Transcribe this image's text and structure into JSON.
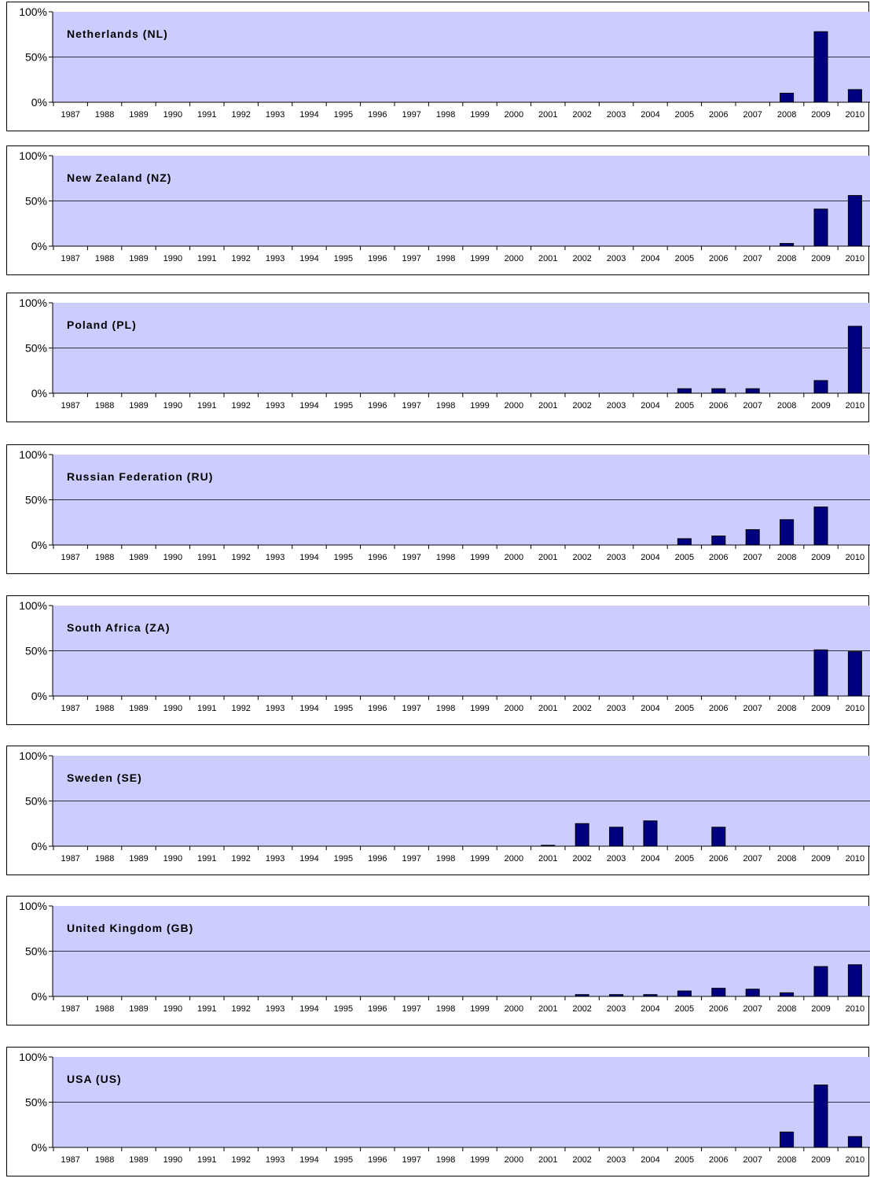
{
  "chart_data": {
    "type": "bar",
    "categories": [
      "1987",
      "1988",
      "1989",
      "1990",
      "1991",
      "1992",
      "1993",
      "1994",
      "1995",
      "1996",
      "1997",
      "1998",
      "1999",
      "2000",
      "2001",
      "2002",
      "2003",
      "2004",
      "2005",
      "2006",
      "2007",
      "2008",
      "2009",
      "2010"
    ],
    "y_ticks": [
      "0%",
      "50%",
      "100%"
    ],
    "ylim": [
      0,
      100
    ],
    "grid": true,
    "panels": [
      {
        "title": "Netherlands (NL)",
        "values": [
          0,
          0,
          0,
          0,
          0,
          0,
          0,
          0,
          0,
          0,
          0,
          0,
          0,
          0,
          0,
          0,
          0,
          0,
          0,
          0,
          0,
          10,
          78,
          14
        ]
      },
      {
        "title": "New Zealand (NZ)",
        "values": [
          0,
          0,
          0,
          0,
          0,
          0,
          0,
          0,
          0,
          0,
          0,
          0,
          0,
          0,
          0,
          0,
          0,
          0,
          0,
          0,
          0,
          3,
          41,
          56
        ]
      },
      {
        "title": "Poland (PL)",
        "values": [
          0,
          0,
          0,
          0,
          0,
          0,
          0,
          0,
          0,
          0,
          0,
          0,
          0,
          0,
          0,
          0,
          0,
          0,
          5,
          5,
          5,
          0,
          14,
          74
        ]
      },
      {
        "title": "Russian Federation (RU)",
        "values": [
          0,
          0,
          0,
          0,
          0,
          0,
          0,
          0,
          0,
          0,
          0,
          0,
          0,
          0,
          0,
          0,
          0,
          0,
          7,
          10,
          17,
          28,
          42,
          0
        ]
      },
      {
        "title": "South Africa (ZA)",
        "values": [
          0,
          0,
          0,
          0,
          0,
          0,
          0,
          0,
          0,
          0,
          0,
          0,
          0,
          0,
          0,
          0,
          0,
          0,
          0,
          0,
          0,
          0,
          51,
          49
        ]
      },
      {
        "title": "Sweden (SE)",
        "values": [
          0,
          0,
          0,
          0,
          0,
          0,
          0,
          0,
          0,
          0,
          0,
          0,
          0,
          0,
          1,
          25,
          21,
          28,
          0,
          21,
          0,
          0,
          0,
          0
        ]
      },
      {
        "title": "United Kingdom (GB)",
        "values": [
          0,
          0,
          0,
          0,
          0,
          0,
          0,
          0,
          0,
          0,
          0,
          0,
          0,
          0,
          0,
          2,
          2,
          2,
          6,
          9,
          8,
          4,
          33,
          35
        ]
      },
      {
        "title": "USA (US)",
        "values": [
          0,
          0,
          0,
          0,
          0,
          0,
          0,
          0,
          0,
          0,
          0,
          0,
          0,
          0,
          0,
          0,
          0,
          0,
          0,
          0,
          0,
          17,
          69,
          12
        ]
      }
    ]
  }
}
